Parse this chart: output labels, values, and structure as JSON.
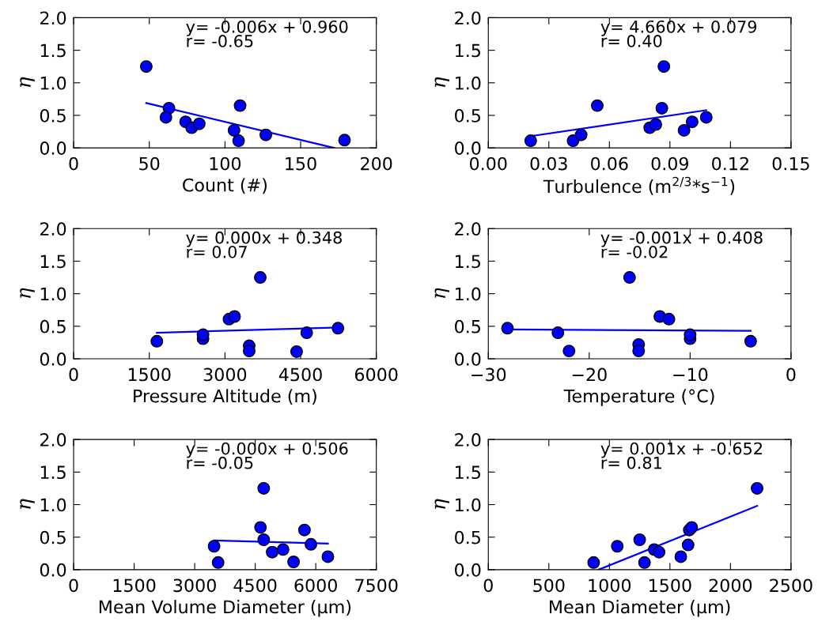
{
  "chart_data": [
    {
      "type": "scatter",
      "xlabel": "Count (#)",
      "ylabel": "η",
      "xlim": [
        0,
        200
      ],
      "xticks": [
        0,
        50,
        100,
        150,
        200
      ],
      "ylim": [
        0,
        2
      ],
      "yticks": [
        {
          "value": 0,
          "label": "0.0"
        },
        {
          "value": 0.5,
          "label": "0.5"
        },
        {
          "value": 1,
          "label": "1.0"
        },
        {
          "value": 1.5,
          "label": "1.5"
        },
        {
          "value": 2,
          "label": "2.0"
        }
      ],
      "annotations": [
        "y= -0.006x + 0.960",
        "r= -0.65"
      ],
      "series": [
        {
          "marker": "circle",
          "color": "#0000ff",
          "x": [
            48,
            63,
            61,
            74,
            78,
            83,
            106,
            110,
            109,
            127,
            179
          ],
          "values": [
            1.25,
            0.61,
            0.47,
            0.4,
            0.31,
            0.37,
            0.27,
            0.65,
            0.11,
            0.2,
            0.12
          ]
        },
        {
          "type": "line",
          "color": "#0000ff",
          "x": [
            48,
            172
          ],
          "values": [
            0.69,
            0.0
          ]
        }
      ]
    },
    {
      "type": "scatter",
      "xlabel": "Turbulence (m$^{2/3}$*s$^{−1}$)",
      "ylabel": "η",
      "xlim": [
        0,
        0.15
      ],
      "xticks": [
        {
          "value": 0,
          "label": "0.00"
        },
        {
          "value": 0.03,
          "label": "0.03"
        },
        {
          "value": 0.06,
          "label": "0.06"
        },
        {
          "value": 0.09,
          "label": "0.09"
        },
        {
          "value": 0.12,
          "label": "0.12"
        },
        {
          "value": 0.15,
          "label": "0.15"
        }
      ],
      "ylim": [
        0,
        2
      ],
      "yticks": [
        {
          "value": 0,
          "label": "0.0"
        },
        {
          "value": 0.5,
          "label": "0.5"
        },
        {
          "value": 1,
          "label": "1.0"
        },
        {
          "value": 1.5,
          "label": "1.5"
        },
        {
          "value": 2,
          "label": "2.0"
        }
      ],
      "annotations": [
        "y= 4.660x + 0.079",
        "r= 0.40"
      ],
      "series": [
        {
          "marker": "circle",
          "color": "#0000ff",
          "x": [
            0.021,
            0.042,
            0.046,
            0.054,
            0.08,
            0.083,
            0.086,
            0.087,
            0.097,
            0.101,
            0.108
          ],
          "values": [
            0.11,
            0.11,
            0.2,
            0.65,
            0.31,
            0.36,
            0.61,
            1.25,
            0.27,
            0.4,
            0.47
          ]
        },
        {
          "type": "line",
          "color": "#0000ff",
          "x": [
            0.021,
            0.108
          ],
          "values": [
            0.18,
            0.58
          ]
        }
      ]
    },
    {
      "type": "scatter",
      "xlabel": "Pressure Altitude (m)",
      "ylabel": "η",
      "xlim": [
        0,
        6000
      ],
      "xticks": [
        0,
        1500,
        3000,
        4500,
        6000
      ],
      "ylim": [
        0,
        2
      ],
      "yticks": [
        {
          "value": 0,
          "label": "0.0"
        },
        {
          "value": 0.5,
          "label": "0.5"
        },
        {
          "value": 1,
          "label": "1.0"
        },
        {
          "value": 1.5,
          "label": "1.5"
        },
        {
          "value": 2,
          "label": "2.0"
        }
      ],
      "annotations": [
        "y= 0.000x + 0.348",
        "r= 0.07"
      ],
      "series": [
        {
          "marker": "circle",
          "color": "#0000ff",
          "x": [
            1650,
            2565,
            2565,
            3080,
            3190,
            3700,
            3480,
            3480,
            4420,
            4620,
            5240
          ],
          "values": [
            0.27,
            0.31,
            0.37,
            0.61,
            0.65,
            1.25,
            0.2,
            0.12,
            0.11,
            0.4,
            0.47
          ]
        },
        {
          "type": "line",
          "color": "#0000ff",
          "x": [
            1650,
            5240
          ],
          "values": [
            0.4,
            0.48
          ]
        }
      ]
    },
    {
      "type": "scatter",
      "xlabel": "Temperature (°C)",
      "ylabel": "η",
      "xlim": [
        -30,
        0
      ],
      "xticks": [
        {
          "value": -30,
          "label": "−30"
        },
        {
          "value": -20,
          "label": "−20"
        },
        {
          "value": -10,
          "label": "−10"
        },
        0
      ],
      "ylim": [
        0,
        2
      ],
      "yticks": [
        {
          "value": 0,
          "label": "0.0"
        },
        {
          "value": 0.5,
          "label": "0.5"
        },
        {
          "value": 1,
          "label": "1.0"
        },
        {
          "value": 1.5,
          "label": "1.5"
        },
        {
          "value": 2,
          "label": "2.0"
        }
      ],
      "annotations": [
        "y= -0.001x + 0.408",
        "r= -0.02"
      ],
      "series": [
        {
          "marker": "circle",
          "color": "#0000ff",
          "x": [
            -28.1,
            -23.1,
            -22.0,
            -16.0,
            -15.1,
            -15.1,
            -13.0,
            -12.1,
            -10.0,
            -10.0,
            -4.0
          ],
          "values": [
            0.47,
            0.4,
            0.12,
            1.25,
            0.22,
            0.12,
            0.65,
            0.61,
            0.31,
            0.37,
            0.27
          ]
        },
        {
          "type": "line",
          "color": "#0000ff",
          "x": [
            -28.1,
            -4.0
          ],
          "values": [
            0.45,
            0.43
          ]
        }
      ]
    },
    {
      "type": "scatter",
      "xlabel": "Mean Volume Diameter (μm)",
      "ylabel": "η",
      "xlim": [
        0,
        7500
      ],
      "xticks": [
        0,
        1500,
        3000,
        4500,
        6000,
        7500
      ],
      "ylim": [
        0,
        2
      ],
      "yticks": [
        {
          "value": 0,
          "label": "0.0"
        },
        {
          "value": 0.5,
          "label": "0.5"
        },
        {
          "value": 1,
          "label": "1.0"
        },
        {
          "value": 1.5,
          "label": "1.5"
        },
        {
          "value": 2,
          "label": "2.0"
        }
      ],
      "annotations": [
        "y= -0.000x + 0.506",
        "r= -0.05"
      ],
      "series": [
        {
          "marker": "circle",
          "color": "#0000ff",
          "x": [
            3480,
            3580,
            4630,
            4710,
            4710,
            4920,
            5190,
            5450,
            5720,
            5880,
            6300
          ],
          "values": [
            0.36,
            0.11,
            0.65,
            1.25,
            0.46,
            0.27,
            0.31,
            0.12,
            0.61,
            0.39,
            0.2
          ]
        },
        {
          "type": "line",
          "color": "#0000ff",
          "x": [
            3480,
            6300
          ],
          "values": [
            0.45,
            0.4
          ]
        }
      ]
    },
    {
      "type": "scatter",
      "xlabel": "Mean Diameter (μm)",
      "ylabel": "η",
      "xlim": [
        0,
        2500
      ],
      "xticks": [
        0,
        500,
        1000,
        1500,
        2000,
        2500
      ],
      "ylim": [
        0,
        2
      ],
      "yticks": [
        {
          "value": 0,
          "label": "0.0"
        },
        {
          "value": 0.5,
          "label": "0.5"
        },
        {
          "value": 1,
          "label": "1.0"
        },
        {
          "value": 1.5,
          "label": "1.5"
        },
        {
          "value": 2,
          "label": "2.0"
        }
      ],
      "annotations": [
        "y= 0.001x + -0.652",
        "r= 0.81"
      ],
      "series": [
        {
          "marker": "circle",
          "color": "#0000ff",
          "x": [
            870,
            1065,
            1250,
            1290,
            1370,
            1410,
            1590,
            1650,
            1660,
            1680,
            2220
          ],
          "values": [
            0.11,
            0.36,
            0.46,
            0.11,
            0.31,
            0.27,
            0.2,
            0.38,
            0.61,
            0.65,
            1.25
          ]
        },
        {
          "type": "line",
          "color": "#0000ff",
          "x": [
            910,
            2220
          ],
          "values": [
            0.0,
            0.98
          ]
        }
      ]
    }
  ]
}
